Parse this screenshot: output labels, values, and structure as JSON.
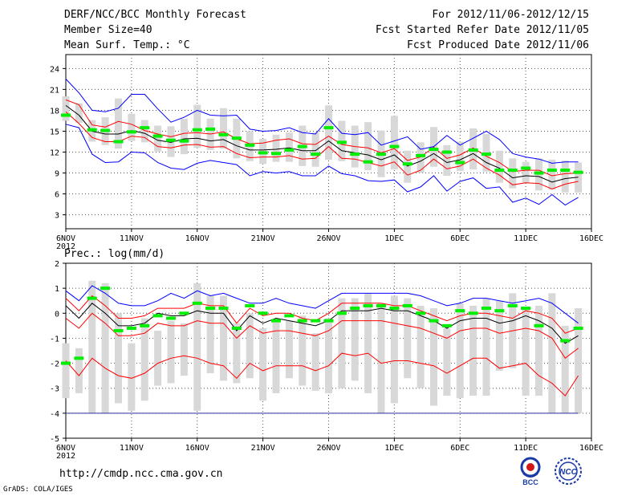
{
  "header": {
    "title": "DERF/NCC/BCC Monthly Forecast",
    "member_size": "Member Size=40",
    "variable": "Mean Surf. Temp.: °C",
    "period": "For 2012/11/06-2012/12/15",
    "started": "Fcst Started Refer Date 2012/11/05",
    "produced": "Fcst Produced Date 2012/11/06"
  },
  "footer": {
    "url": "http://cmdp.ncc.cma.gov.cn",
    "grads": "GrADS: COLA/IGES",
    "logo_bcc": "BCC",
    "logo_ncc": "NCC"
  },
  "colors": {
    "envelope": "#0000ff",
    "spread": "#ff0000",
    "mean": "#000000",
    "observed": "#00ee00",
    "bar": "#d8d8d8",
    "grid": "#555555"
  },
  "chart_data": [
    {
      "type": "line",
      "name": "temperature",
      "title": "Mean Surf. Temp.: °C",
      "ylabel": "°C",
      "ylim": [
        1,
        26
      ],
      "yticks": [
        3,
        6,
        9,
        12,
        15,
        18,
        21,
        24
      ],
      "x_tick_labels": [
        "6NOV",
        "11NOV",
        "16NOV",
        "21NOV",
        "26NOV",
        "1DEC",
        "6DEC",
        "11DEC",
        "16DEC"
      ],
      "x_tick_days": [
        0,
        5,
        10,
        15,
        20,
        25,
        30,
        35,
        40
      ],
      "year_label": "2012",
      "days": [
        0,
        1,
        2,
        3,
        4,
        5,
        6,
        7,
        8,
        9,
        10,
        11,
        12,
        13,
        14,
        15,
        16,
        17,
        18,
        19,
        20,
        21,
        22,
        23,
        24,
        25,
        26,
        27,
        28,
        29,
        30,
        31,
        32,
        33,
        34,
        35,
        36,
        37,
        38,
        39
      ],
      "series": [
        {
          "name": "max",
          "color": "#0000ff",
          "values": [
            22.5,
            20.5,
            18.0,
            17.8,
            18.3,
            20.3,
            20.3,
            18.2,
            16.3,
            17.0,
            18.0,
            17.3,
            17.2,
            17.3,
            15.3,
            15.0,
            15.1,
            15.5,
            14.8,
            14.6,
            16.8,
            14.7,
            14.5,
            14.8,
            13.0,
            13.6,
            14.2,
            12.4,
            12.8,
            14.4,
            13.0,
            14.0,
            15.0,
            13.8,
            11.8,
            11.3,
            11.0,
            10.4,
            10.6,
            10.6
          ]
        },
        {
          "name": "upper",
          "color": "#ff0000",
          "values": [
            19.5,
            18.8,
            15.9,
            15.6,
            16.4,
            16.0,
            15.1,
            14.6,
            14.2,
            14.7,
            14.8,
            14.6,
            14.9,
            13.9,
            13.2,
            13.3,
            13.7,
            13.9,
            13.2,
            13.1,
            14.3,
            13.1,
            12.8,
            12.6,
            11.9,
            12.5,
            10.8,
            11.3,
            12.7,
            11.1,
            11.6,
            12.6,
            11.4,
            10.5,
            9.2,
            9.4,
            9.4,
            8.6,
            8.9,
            9.0
          ]
        },
        {
          "name": "mean",
          "color": "#000000",
          "values": [
            18.7,
            17.3,
            15.0,
            14.6,
            14.6,
            15.1,
            14.7,
            13.7,
            13.4,
            13.9,
            14.0,
            13.6,
            13.8,
            12.9,
            12.3,
            12.3,
            12.4,
            12.6,
            12.2,
            12.2,
            13.6,
            12.2,
            11.9,
            11.6,
            10.9,
            11.6,
            10.0,
            10.7,
            11.8,
            10.5,
            10.9,
            11.8,
            10.5,
            9.7,
            8.3,
            8.6,
            8.5,
            7.7,
            8.2,
            8.4
          ]
        },
        {
          "name": "lower",
          "color": "#ff0000",
          "values": [
            17.8,
            16.1,
            14.1,
            13.5,
            13.5,
            14.3,
            14.1,
            12.8,
            12.6,
            13.0,
            13.1,
            12.7,
            12.8,
            11.8,
            11.2,
            11.3,
            11.3,
            11.5,
            11.0,
            11.1,
            12.8,
            11.1,
            11.0,
            10.5,
            10.0,
            10.6,
            8.7,
            9.4,
            11.0,
            9.6,
            10.0,
            11.0,
            9.7,
            8.7,
            7.3,
            7.6,
            7.5,
            6.7,
            7.4,
            7.8
          ]
        },
        {
          "name": "min",
          "color": "#0000ff",
          "values": [
            16.0,
            15.5,
            11.7,
            10.5,
            10.6,
            12.0,
            11.9,
            10.5,
            9.7,
            9.5,
            10.4,
            10.8,
            10.5,
            10.2,
            8.6,
            9.2,
            9.0,
            9.2,
            8.6,
            8.6,
            10.0,
            8.9,
            8.6,
            7.9,
            7.8,
            8.0,
            6.3,
            7.0,
            8.6,
            6.4,
            7.8,
            8.3,
            6.8,
            7.0,
            4.8,
            5.4,
            4.5,
            5.9,
            4.4,
            5.5
          ]
        },
        {
          "name": "observed",
          "color": "#00ee00",
          "values": [
            17.3,
            null,
            15.2,
            15.1,
            13.5,
            14.9,
            15.5,
            14.3,
            13.7,
            13.6,
            15.2,
            15.3,
            14.5,
            14.0,
            13.0,
            11.9,
            11.8,
            12.3,
            12.8,
            11.7,
            15.5,
            13.4,
            11.7,
            10.6,
            11.7,
            12.8,
            10.3,
            11.5,
            12.4,
            12.0,
            10.5,
            12.3,
            11.7,
            9.4,
            9.4,
            9.7,
            9.0,
            9.4,
            9.4,
            9.1
          ]
        }
      ],
      "bars_low": [
        16.5,
        16.2,
        13.5,
        13.0,
        12.5,
        13.6,
        13.4,
        12.1,
        11.3,
        11.7,
        12.6,
        12.3,
        12.5,
        11.1,
        10.7,
        10.3,
        10.6,
        10.6,
        10.0,
        9.9,
        10.9,
        10.7,
        9.8,
        9.4,
        8.4,
        9.5,
        7.6,
        9.0,
        9.9,
        8.6,
        9.3,
        9.5,
        9.2,
        7.6,
        6.8,
        7.6,
        6.5,
        6.6,
        6.2,
        6.2
      ],
      "bars_high": [
        20.0,
        19.0,
        16.6,
        17.0,
        19.7,
        17.5,
        16.6,
        15.8,
        15.7,
        16.8,
        18.8,
        16.8,
        18.3,
        16.8,
        15.0,
        13.9,
        14.5,
        14.8,
        15.8,
        14.8,
        18.7,
        16.5,
        15.8,
        16.3,
        15.1,
        17.2,
        12.2,
        13.4,
        15.6,
        13.0,
        13.5,
        15.4,
        14.6,
        12.2,
        11.1,
        10.6,
        11.1,
        10.9,
        10.8,
        10.5
      ]
    },
    {
      "type": "line",
      "name": "precipitation",
      "title": "Prec.: log(mm/d)",
      "ylabel": "log(mm/d)",
      "ylim": [
        -5,
        2
      ],
      "yticks": [
        -5,
        -4,
        -3,
        -2,
        -1,
        0,
        1,
        2
      ],
      "x_tick_labels": [
        "6NOV",
        "11NOV",
        "16NOV",
        "21NOV",
        "26NOV",
        "1DEC",
        "6DEC",
        "11DEC",
        "16DEC"
      ],
      "x_tick_days": [
        0,
        5,
        10,
        15,
        20,
        25,
        30,
        35,
        40
      ],
      "year_label": "2012",
      "baseline": -4,
      "days": [
        0,
        1,
        2,
        3,
        4,
        5,
        6,
        7,
        8,
        9,
        10,
        11,
        12,
        13,
        14,
        15,
        16,
        17,
        18,
        19,
        20,
        21,
        22,
        23,
        24,
        25,
        26,
        27,
        28,
        29,
        30,
        31,
        32,
        33,
        34,
        35,
        36,
        37,
        38,
        39
      ],
      "series": [
        {
          "name": "max",
          "color": "#0000ff",
          "values": [
            0.9,
            0.5,
            1.1,
            0.8,
            0.4,
            0.3,
            0.3,
            0.5,
            0.8,
            0.6,
            0.9,
            0.7,
            0.8,
            0.6,
            0.4,
            0.4,
            0.6,
            0.4,
            0.3,
            0.2,
            0.5,
            0.8,
            0.8,
            0.8,
            0.8,
            0.8,
            0.8,
            0.7,
            0.5,
            0.3,
            0.4,
            0.6,
            0.6,
            0.5,
            0.4,
            0.5,
            0.6,
            0.4,
            0.0,
            -0.4
          ]
        },
        {
          "name": "upper",
          "color": "#ff0000",
          "values": [
            0.6,
            0.1,
            0.7,
            0.3,
            -0.2,
            -0.2,
            -0.1,
            0.2,
            0.2,
            0.2,
            0.4,
            0.3,
            0.3,
            -0.4,
            0.2,
            -0.1,
            0.0,
            0.0,
            -0.2,
            -0.3,
            0.0,
            0.4,
            0.4,
            0.4,
            0.4,
            0.3,
            0.3,
            0.1,
            -0.1,
            -0.3,
            -0.1,
            0.0,
            0.0,
            -0.1,
            -0.2,
            0.1,
            0.0,
            -0.2,
            -0.8,
            -0.6
          ]
        },
        {
          "name": "mean",
          "color": "#000000",
          "values": [
            0.3,
            -0.2,
            0.4,
            0.0,
            -0.5,
            -0.5,
            -0.4,
            0.0,
            -0.1,
            -0.1,
            0.1,
            0.0,
            0.0,
            -0.7,
            -0.1,
            -0.4,
            -0.2,
            -0.3,
            -0.4,
            -0.5,
            -0.3,
            0.1,
            0.1,
            0.1,
            0.2,
            0.1,
            0.1,
            -0.1,
            -0.3,
            -0.6,
            -0.3,
            -0.2,
            -0.2,
            -0.4,
            -0.3,
            -0.1,
            -0.3,
            -0.6,
            -1.2,
            -0.9
          ]
        },
        {
          "name": "lower",
          "color": "#ff0000",
          "values": [
            -0.2,
            -0.6,
            0.0,
            -0.4,
            -0.9,
            -0.9,
            -0.8,
            -0.4,
            -0.5,
            -0.5,
            -0.3,
            -0.4,
            -0.4,
            -1.0,
            -0.5,
            -0.8,
            -0.7,
            -0.7,
            -0.8,
            -0.9,
            -0.7,
            -0.3,
            -0.3,
            -0.3,
            -0.3,
            -0.4,
            -0.5,
            -0.6,
            -0.8,
            -1.0,
            -0.7,
            -0.6,
            -0.6,
            -0.8,
            -0.7,
            -0.6,
            -0.7,
            -1.0,
            -1.8,
            -1.4
          ]
        },
        {
          "name": "min",
          "color": "#ff0000",
          "values": [
            -1.9,
            -2.5,
            -1.8,
            -2.2,
            -2.5,
            -2.6,
            -2.4,
            -2.0,
            -1.8,
            -1.7,
            -1.8,
            -2.0,
            -2.1,
            -2.6,
            -2.0,
            -2.3,
            -2.1,
            -2.1,
            -2.1,
            -2.3,
            -2.1,
            -1.6,
            -1.7,
            -1.6,
            -2.0,
            -1.9,
            -1.9,
            -2.0,
            -2.1,
            -2.4,
            -2.1,
            -1.8,
            -1.8,
            -2.2,
            -2.1,
            -2.0,
            -2.5,
            -2.8,
            -3.3,
            -2.5
          ]
        },
        {
          "name": "observed",
          "color": "#00ee00",
          "values": [
            -2.0,
            -1.8,
            0.6,
            1.0,
            -0.7,
            -0.6,
            -0.5,
            -0.1,
            -0.2,
            0.0,
            0.4,
            0.2,
            0.2,
            -0.6,
            0.3,
            0.0,
            -0.3,
            -0.1,
            -0.3,
            -0.3,
            -0.3,
            0.0,
            0.2,
            0.3,
            0.3,
            0.2,
            0.3,
            0.0,
            -0.3,
            -0.5,
            0.1,
            0.0,
            0.2,
            0.1,
            0.3,
            0.2,
            -0.5,
            null,
            -1.1,
            -0.6
          ]
        }
      ],
      "bars_low": [
        -3.4,
        -3.2,
        -4.0,
        -4.0,
        -3.6,
        -3.9,
        -3.5,
        -2.9,
        -2.8,
        -2.5,
        -3.9,
        -2.4,
        -2.7,
        -2.8,
        -2.6,
        -3.5,
        -3.2,
        -2.6,
        -2.9,
        -3.1,
        -3.2,
        -3.0,
        -2.7,
        -3.2,
        -4.0,
        -3.6,
        -2.6,
        -3.0,
        -3.7,
        -3.3,
        -3.4,
        -3.3,
        -3.3,
        -2.3,
        -2.2,
        -3.3,
        -3.3,
        -4.0,
        -4.0,
        -4.0
      ],
      "bars_high": [
        -1.2,
        -1.4,
        1.3,
        1.2,
        0.0,
        -1.2,
        -0.2,
        -0.7,
        -0.3,
        -0.4,
        1.2,
        0.7,
        0.7,
        -0.4,
        0.0,
        -0.6,
        -0.3,
        -0.3,
        -0.1,
        -0.8,
        -0.2,
        0.6,
        0.6,
        0.8,
        0.4,
        0.7,
        0.6,
        0.3,
        0.2,
        -0.6,
        0.4,
        0.3,
        0.6,
        0.5,
        0.8,
        0.2,
        0.3,
        0.8,
        -0.5,
        0.2
      ]
    }
  ]
}
